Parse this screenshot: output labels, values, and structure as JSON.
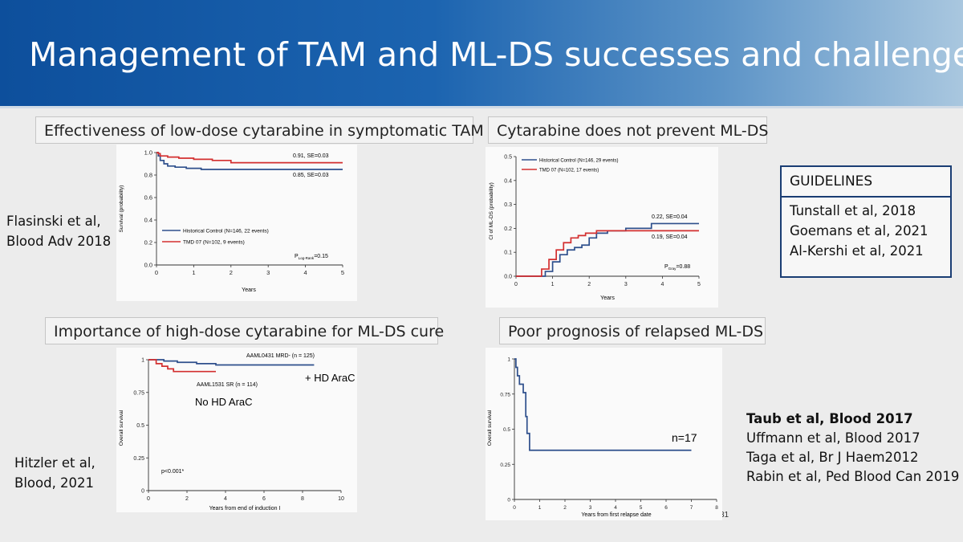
{
  "slide": {
    "title": "Management of TAM and ML-DS successes and challenges",
    "page_number": "31",
    "colors": {
      "header": "#1c64b0",
      "blue_series": "#2e4f8c",
      "red_series": "#d32f2f"
    }
  },
  "panels": {
    "tl": {
      "title": "Effectiveness of low-dose cytarabine in symptomatic TAM",
      "citation": [
        "Flasinski et al,",
        "Blood Adv 2018"
      ]
    },
    "tr": {
      "title": "Cytarabine does not prevent ML-DS"
    },
    "bl": {
      "title": "Importance of high-dose cytarabine for ML-DS cure",
      "citation": [
        "Hitzler et al,",
        "Blood, 2021"
      ]
    },
    "br": {
      "title": "Poor prognosis of relapsed ML-DS"
    }
  },
  "guidelines": {
    "heading": "GUIDELINES",
    "items": [
      "Tunstall et al, 2018",
      "Goemans et al, 2021",
      "Al-Kershi et al, 2021"
    ]
  },
  "references": {
    "bold": "Taub et al, Blood 2017",
    "items": [
      "Uffmann et al, Blood 2017",
      "Taga et al, Br J Haem2012",
      "Rabin et al, Ped Blood Can 2019"
    ]
  },
  "chart_data": [
    {
      "id": "tl",
      "type": "line",
      "xlabel": "Years",
      "ylabel": "Survival (probability)",
      "xlim": [
        0,
        5
      ],
      "ylim": [
        0,
        1
      ],
      "xticks": [
        "0",
        "1",
        "2",
        "3",
        "4",
        "5"
      ],
      "yticks": [
        "0.0",
        "0.2",
        "0.4",
        "0.6",
        "0.8",
        "1.0"
      ],
      "series": [
        {
          "name": "Historical Control (N=146, 22 events)",
          "color": "#2e4f8c",
          "step": true,
          "x": [
            0,
            0.05,
            0.1,
            0.2,
            0.3,
            0.5,
            0.8,
            1.2,
            5
          ],
          "y": [
            1,
            0.97,
            0.93,
            0.9,
            0.88,
            0.87,
            0.86,
            0.85,
            0.85
          ]
        },
        {
          "name": "TMD 07 (N=102, 9 events)",
          "color": "#d32f2f",
          "step": true,
          "x": [
            0,
            0.05,
            0.1,
            0.3,
            0.6,
            1.0,
            1.5,
            2.0,
            5
          ],
          "y": [
            1,
            0.99,
            0.97,
            0.96,
            0.95,
            0.94,
            0.93,
            0.91,
            0.91
          ]
        }
      ],
      "annotations": [
        "0.91, SE=0.03",
        "0.85, SE=0.03"
      ],
      "pvalue": {
        "main": "P",
        "sub": "Log-Rank",
        "rest": "=0.15"
      }
    },
    {
      "id": "tr",
      "type": "line",
      "xlabel": "Years",
      "ylabel": "CI of ML-DS (probability)",
      "xlim": [
        0,
        5
      ],
      "ylim": [
        0,
        0.5
      ],
      "xticks": [
        "0",
        "1",
        "2",
        "3",
        "4",
        "5"
      ],
      "yticks": [
        "0.0",
        "0.1",
        "0.2",
        "0.3",
        "0.4",
        "0.5"
      ],
      "series": [
        {
          "name": "Historical Control (N=146, 29 events)",
          "color": "#2e4f8c",
          "step": true,
          "x": [
            0,
            0.6,
            0.8,
            1.0,
            1.2,
            1.4,
            1.6,
            1.8,
            2.0,
            2.2,
            2.5,
            3.0,
            3.5,
            3.7,
            5
          ],
          "y": [
            0,
            0,
            0.02,
            0.06,
            0.09,
            0.11,
            0.12,
            0.13,
            0.16,
            0.18,
            0.19,
            0.2,
            0.2,
            0.22,
            0.22
          ]
        },
        {
          "name": "TMD 07 (N=102, 17 events)",
          "color": "#d32f2f",
          "step": true,
          "x": [
            0,
            0.5,
            0.7,
            0.9,
            1.1,
            1.3,
            1.5,
            1.7,
            1.9,
            2.2,
            2.6,
            3.0,
            5
          ],
          "y": [
            0,
            0,
            0.03,
            0.07,
            0.11,
            0.14,
            0.16,
            0.17,
            0.18,
            0.19,
            0.19,
            0.19,
            0.19
          ]
        }
      ],
      "annotations": [
        "0.22, SE=0.04",
        "0.19, SE=0.04"
      ],
      "pvalue": {
        "main": "P",
        "sub": "Gray",
        "rest": "=0.88"
      }
    },
    {
      "id": "bl",
      "type": "line",
      "xlabel": "Years from end of induction I",
      "ylabel": "Overall survival",
      "xlim": [
        0,
        10
      ],
      "ylim": [
        0,
        1
      ],
      "xticks": [
        "0",
        "2",
        "4",
        "6",
        "8",
        "10"
      ],
      "yticks": [
        "0",
        "0.25",
        "0.5",
        "0.75",
        "1"
      ],
      "series": [
        {
          "name": "AAML0431 MRD- (n = 125)",
          "color": "#2e4f8c",
          "step": true,
          "x": [
            0,
            0.8,
            1.5,
            2.5,
            3.5,
            8.6
          ],
          "y": [
            1,
            0.99,
            0.98,
            0.97,
            0.96,
            0.96
          ]
        },
        {
          "name": "AAML1531 SR (n = 114)",
          "color": "#d32f2f",
          "step": true,
          "x": [
            0,
            0.4,
            0.7,
            1.0,
            1.3,
            3.5
          ],
          "y": [
            1,
            0.97,
            0.95,
            0.93,
            0.91,
            0.91
          ]
        }
      ],
      "annotations": [
        "+ HD AraC",
        "No HD AraC"
      ],
      "pvalue": {
        "text": "p<0.001*"
      }
    },
    {
      "id": "br",
      "type": "line",
      "xlabel": "Years from first relapse date",
      "ylabel": "Overall survival",
      "xlim": [
        0,
        8
      ],
      "ylim": [
        0,
        1
      ],
      "xticks": [
        "0",
        "1",
        "2",
        "3",
        "4",
        "5",
        "6",
        "7",
        "8"
      ],
      "yticks": [
        "0",
        "0.25",
        "0.5",
        "0.75",
        "1"
      ],
      "series": [
        {
          "name": "",
          "color": "#2e4f8c",
          "step": true,
          "x": [
            0,
            0.06,
            0.12,
            0.2,
            0.35,
            0.45,
            0.5,
            0.6,
            7
          ],
          "y": [
            1,
            0.94,
            0.88,
            0.82,
            0.76,
            0.59,
            0.47,
            0.35,
            0.35
          ]
        }
      ],
      "annotations": [
        "n=17"
      ]
    }
  ]
}
